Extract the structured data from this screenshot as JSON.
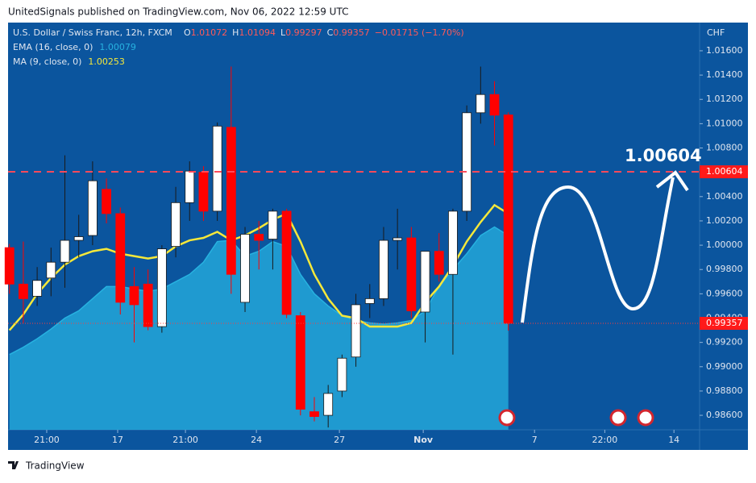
{
  "header": {
    "text": "UnitedSignals published on TradingView.com, Nov 06, 2022 12:59 UTC"
  },
  "footer": {
    "brand": "TradingView"
  },
  "chart_data": {
    "type": "candlestick",
    "title": "U.S. Dollar / Swiss Franc, 12h, FXCM",
    "ohlc_letters": [
      "O",
      "H",
      "L",
      "C"
    ],
    "change_label": "−0.01715 (−1.70%)",
    "currency": "CHF",
    "up_color": "#ffffff",
    "down_color": "#ff0000",
    "candles": [
      {
        "open": 0.9998,
        "high": 1.0001,
        "low": 0.996,
        "close": 0.9968
      },
      {
        "open": 0.9968,
        "high": 1.0003,
        "low": 0.9936,
        "close": 0.9956
      },
      {
        "open": 0.9958,
        "high": 0.9982,
        "low": 0.995,
        "close": 0.9971
      },
      {
        "open": 0.9973,
        "high": 0.9998,
        "low": 0.9958,
        "close": 0.9986
      },
      {
        "open": 0.9986,
        "high": 1.0074,
        "low": 0.9965,
        "close": 1.0004
      },
      {
        "open": 1.0004,
        "high": 1.0025,
        "low": 0.999,
        "close": 1.0007
      },
      {
        "open": 1.0008,
        "high": 1.0069,
        "low": 1.0,
        "close": 1.0053
      },
      {
        "open": 1.0046,
        "high": 1.0055,
        "low": 1.0018,
        "close": 1.0026
      },
      {
        "open": 1.0026,
        "high": 1.0031,
        "low": 0.9943,
        "close": 0.9953
      },
      {
        "open": 0.9966,
        "high": 0.9982,
        "low": 0.992,
        "close": 0.9951
      },
      {
        "open": 0.9968,
        "high": 0.998,
        "low": 0.993,
        "close": 0.9933
      },
      {
        "open": 0.9933,
        "high": 1.0,
        "low": 0.9928,
        "close": 0.9997
      },
      {
        "open": 0.9999,
        "high": 1.0048,
        "low": 0.999,
        "close": 1.0035
      },
      {
        "open": 1.0035,
        "high": 1.0069,
        "low": 1.002,
        "close": 1.0061
      },
      {
        "open": 1.006,
        "high": 1.0065,
        "low": 1.002,
        "close": 1.0028
      },
      {
        "open": 1.0028,
        "high": 1.0101,
        "low": 1.002,
        "close": 1.0098
      },
      {
        "open": 1.0097,
        "high": 1.0147,
        "low": 0.996,
        "close": 0.9976
      },
      {
        "open": 0.9953,
        "high": 1.0015,
        "low": 0.9945,
        "close": 1.0009
      },
      {
        "open": 1.0009,
        "high": 1.002,
        "low": 0.998,
        "close": 1.0004
      },
      {
        "open": 1.0005,
        "high": 1.003,
        "low": 0.998,
        "close": 1.0028
      },
      {
        "open": 1.0028,
        "high": 1.003,
        "low": 0.994,
        "close": 0.9943
      },
      {
        "open": 0.9942,
        "high": 0.9945,
        "low": 0.986,
        "close": 0.9865
      },
      {
        "open": 0.9863,
        "high": 0.9875,
        "low": 0.9855,
        "close": 0.9859
      },
      {
        "open": 0.986,
        "high": 0.9885,
        "low": 0.985,
        "close": 0.9878
      },
      {
        "open": 0.988,
        "high": 0.991,
        "low": 0.9875,
        "close": 0.9907
      },
      {
        "open": 0.9908,
        "high": 0.996,
        "low": 0.99,
        "close": 0.9951
      },
      {
        "open": 0.9952,
        "high": 0.9968,
        "low": 0.994,
        "close": 0.9956
      },
      {
        "open": 0.9956,
        "high": 1.0015,
        "low": 0.995,
        "close": 1.0004
      },
      {
        "open": 1.0004,
        "high": 1.003,
        "low": 0.998,
        "close": 1.0006
      },
      {
        "open": 1.0006,
        "high": 1.0015,
        "low": 0.994,
        "close": 0.9946
      },
      {
        "open": 0.9945,
        "high": 0.9995,
        "low": 0.992,
        "close": 0.9995
      },
      {
        "open": 0.9995,
        "high": 1.001,
        "low": 0.997,
        "close": 0.9976
      },
      {
        "open": 0.9976,
        "high": 1.003,
        "low": 0.991,
        "close": 1.0028
      },
      {
        "open": 1.0028,
        "high": 1.0115,
        "low": 1.002,
        "close": 1.0109
      },
      {
        "open": 1.0109,
        "high": 1.0147,
        "low": 1.01,
        "close": 1.0124
      },
      {
        "open": 1.0124,
        "high": 1.0135,
        "low": 1.0082,
        "close": 1.0107
      },
      {
        "open": 1.01072,
        "high": 1.01094,
        "low": 0.99297,
        "close": 0.99357
      }
    ],
    "series": [
      {
        "name": "EMA (16, close, 0)",
        "legend_value": "1.00079",
        "color": "#27b2e0",
        "style": "area",
        "values": [
          0.991,
          0.9916,
          0.9923,
          0.9931,
          0.994,
          0.9946,
          0.9956,
          0.9966,
          0.9966,
          0.9964,
          0.9962,
          0.9964,
          0.997,
          0.9976,
          0.9986,
          1.0003,
          1.0004,
          0.9991,
          0.9995,
          1.0003,
          0.9999,
          0.9976,
          0.996,
          0.995,
          0.9942,
          0.9938,
          0.9936,
          0.9935,
          0.9936,
          0.9938,
          0.9946,
          0.9966,
          0.998,
          0.9993,
          1.0008,
          1.0015,
          1.0008
        ]
      },
      {
        "name": "MA (9, close, 0)",
        "legend_value": "1.00253",
        "color": "#f5e83a",
        "style": "line",
        "values": [
          0.993,
          0.9943,
          0.996,
          0.9973,
          0.9984,
          0.9991,
          0.9995,
          0.9997,
          0.9993,
          0.9991,
          0.9989,
          0.9991,
          0.9999,
          1.0004,
          1.0006,
          1.0011,
          1.0004,
          1.0008,
          1.0014,
          1.0021,
          1.0026,
          1.0003,
          0.9976,
          0.9956,
          0.9942,
          0.994,
          0.9933,
          0.9933,
          0.9933,
          0.9936,
          0.9953,
          0.9966,
          0.9983,
          1.0003,
          1.0019,
          1.0033,
          1.0026
        ]
      }
    ],
    "target": {
      "value": 1.00604,
      "label": "1.00604"
    },
    "ylim": [
      0.98481,
      1.01832
    ],
    "yticks": [
      {
        "value": 1.016,
        "label": "1.01600"
      },
      {
        "value": 1.014,
        "label": "1.01400"
      },
      {
        "value": 1.012,
        "label": "1.01200"
      },
      {
        "value": 1.01,
        "label": "1.01000"
      },
      {
        "value": 1.008,
        "label": "1.00800"
      },
      {
        "value": 1.006,
        "label": "1.00600"
      },
      {
        "value": 1.004,
        "label": "1.00400"
      },
      {
        "value": 1.002,
        "label": "1.00200"
      },
      {
        "value": 1.0,
        "label": "1.00000"
      },
      {
        "value": 0.998,
        "label": "0.99800"
      },
      {
        "value": 0.996,
        "label": "0.99600"
      },
      {
        "value": 0.994,
        "label": "0.99400"
      },
      {
        "value": 0.992,
        "label": "0.99200"
      },
      {
        "value": 0.99,
        "label": "0.99000"
      },
      {
        "value": 0.988,
        "label": "0.98800"
      },
      {
        "value": 0.986,
        "label": "0.98600"
      }
    ],
    "xlim": [
      -0.1,
      49.8
    ],
    "xticks": [
      {
        "value": 2.69,
        "label": "21:00"
      },
      {
        "value": 7.81,
        "label": "17"
      },
      {
        "value": 12.7,
        "label": "21:00"
      },
      {
        "value": 17.82,
        "label": "24"
      },
      {
        "value": 23.81,
        "label": "27"
      },
      {
        "value": 29.86,
        "label": "Nov"
      },
      {
        "value": 37.89,
        "label": "7"
      },
      {
        "value": 42.96,
        "label": "22:00"
      },
      {
        "value": 47.95,
        "label": "14"
      }
    ]
  }
}
